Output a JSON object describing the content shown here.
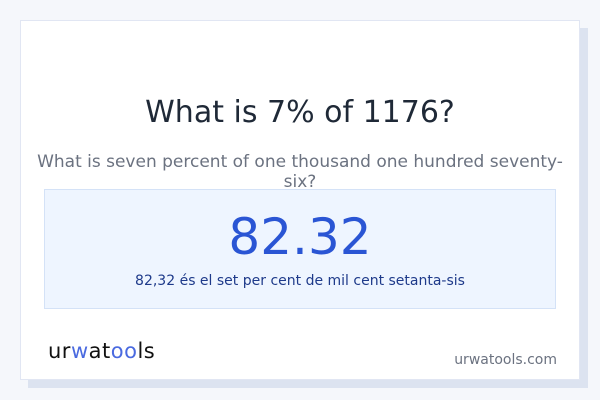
{
  "title": "What is 7% of 1176?",
  "subtitle": "What is seven percent of one thousand one hundred seventy-six?",
  "result": {
    "value": "82.32",
    "words": "82,32 és el set per cent de mil cent setanta-sis"
  },
  "brand": {
    "logo_text": "urwatools",
    "site": "urwatools.com"
  },
  "colors": {
    "accent": "#2a55d4",
    "result_bg": "#eef5ff"
  }
}
